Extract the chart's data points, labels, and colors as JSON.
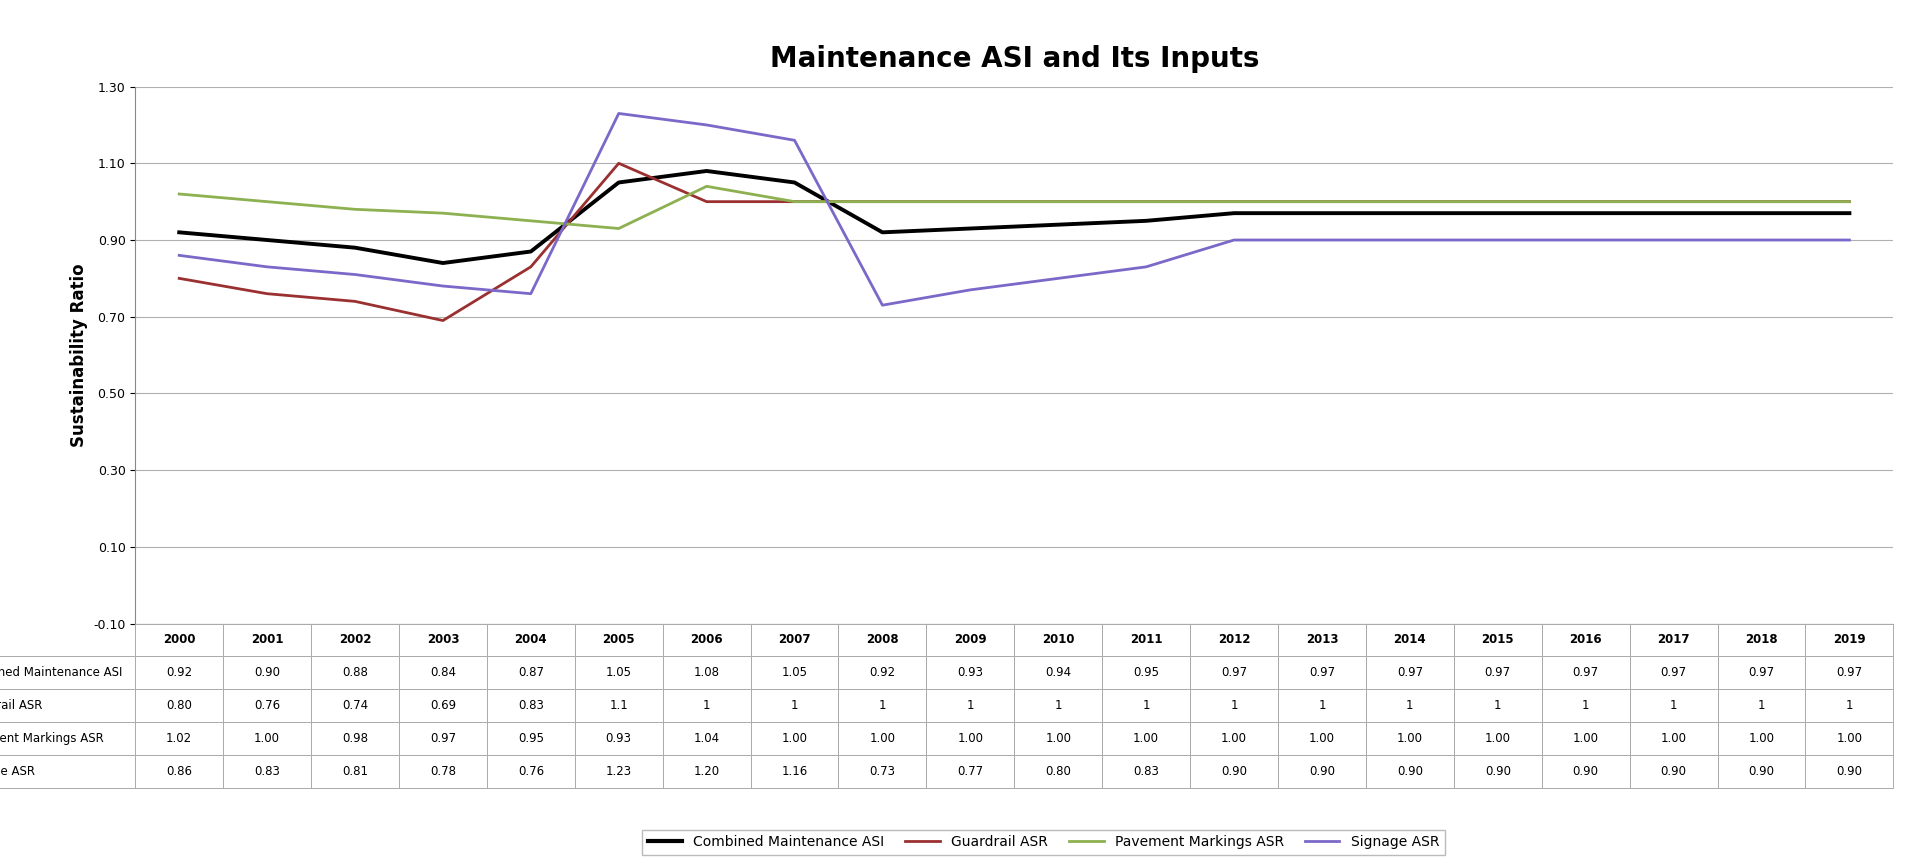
{
  "title": "Maintenance ASI and Its Inputs",
  "years": [
    2000,
    2001,
    2002,
    2003,
    2004,
    2005,
    2006,
    2007,
    2008,
    2009,
    2010,
    2011,
    2012,
    2013,
    2014,
    2015,
    2016,
    2017,
    2018,
    2019
  ],
  "combined": [
    0.92,
    0.9,
    0.88,
    0.84,
    0.87,
    1.05,
    1.08,
    1.05,
    0.92,
    0.93,
    0.94,
    0.95,
    0.97,
    0.97,
    0.97,
    0.97,
    0.97,
    0.97,
    0.97,
    0.97
  ],
  "guardrail": [
    0.8,
    0.76,
    0.74,
    0.69,
    0.83,
    1.1,
    1.0,
    1.0,
    1.0,
    1.0,
    1.0,
    1.0,
    1.0,
    1.0,
    1.0,
    1.0,
    1.0,
    1.0,
    1.0,
    1.0
  ],
  "pavement": [
    1.02,
    1.0,
    0.98,
    0.97,
    0.95,
    0.93,
    1.04,
    1.0,
    1.0,
    1.0,
    1.0,
    1.0,
    1.0,
    1.0,
    1.0,
    1.0,
    1.0,
    1.0,
    1.0,
    1.0
  ],
  "signage": [
    0.86,
    0.83,
    0.81,
    0.78,
    0.76,
    1.23,
    1.2,
    1.16,
    0.73,
    0.77,
    0.8,
    0.83,
    0.9,
    0.9,
    0.9,
    0.9,
    0.9,
    0.9,
    0.9,
    0.9
  ],
  "combined_color": "#000000",
  "guardrail_color": "#9b3030",
  "pavement_color": "#8db050",
  "signage_color": "#7b68c8",
  "ylabel": "Sustainability Ratio",
  "ylim": [
    -0.1,
    1.3
  ],
  "yticks": [
    -0.1,
    0.1,
    0.3,
    0.5,
    0.7,
    0.9,
    1.1,
    1.3
  ],
  "background_color": "#ffffff",
  "plot_bg_color": "#ffffff",
  "grid_color": "#b0b0b0",
  "row_labels": [
    "Combined Maintenance ASI",
    "Guardrail ASR",
    "Pavement Markings ASR",
    "Signage ASR"
  ],
  "legend_labels": [
    "Combined Maintenance ASI",
    "Guardrail ASR",
    "Pavement Markings ASR",
    "Signage ASR"
  ],
  "table_combined": [
    "0.92",
    "0.90",
    "0.88",
    "0.84",
    "0.87",
    "1.05",
    "1.08",
    "1.05",
    "0.92",
    "0.93",
    "0.94",
    "0.95",
    "0.97",
    "0.97",
    "0.97",
    "0.97",
    "0.97",
    "0.97",
    "0.97",
    "0.97"
  ],
  "table_guardrail": [
    "0.80",
    "0.76",
    "0.74",
    "0.69",
    "0.83",
    "1.1",
    "1",
    "1",
    "1",
    "1",
    "1",
    "1",
    "1",
    "1",
    "1",
    "1",
    "1",
    "1",
    "1",
    "1"
  ],
  "table_pavement": [
    "1.02",
    "1.00",
    "0.98",
    "0.97",
    "0.95",
    "0.93",
    "1.04",
    "1.00",
    "1.00",
    "1.00",
    "1.00",
    "1.00",
    "1.00",
    "1.00",
    "1.00",
    "1.00",
    "1.00",
    "1.00",
    "1.00",
    "1.00"
  ],
  "table_signage": [
    "0.86",
    "0.83",
    "0.81",
    "0.78",
    "0.76",
    "1.23",
    "1.20",
    "1.16",
    "0.73",
    "0.77",
    "0.80",
    "0.83",
    "0.90",
    "0.90",
    "0.90",
    "0.90",
    "0.90",
    "0.90",
    "0.90",
    "0.90"
  ]
}
